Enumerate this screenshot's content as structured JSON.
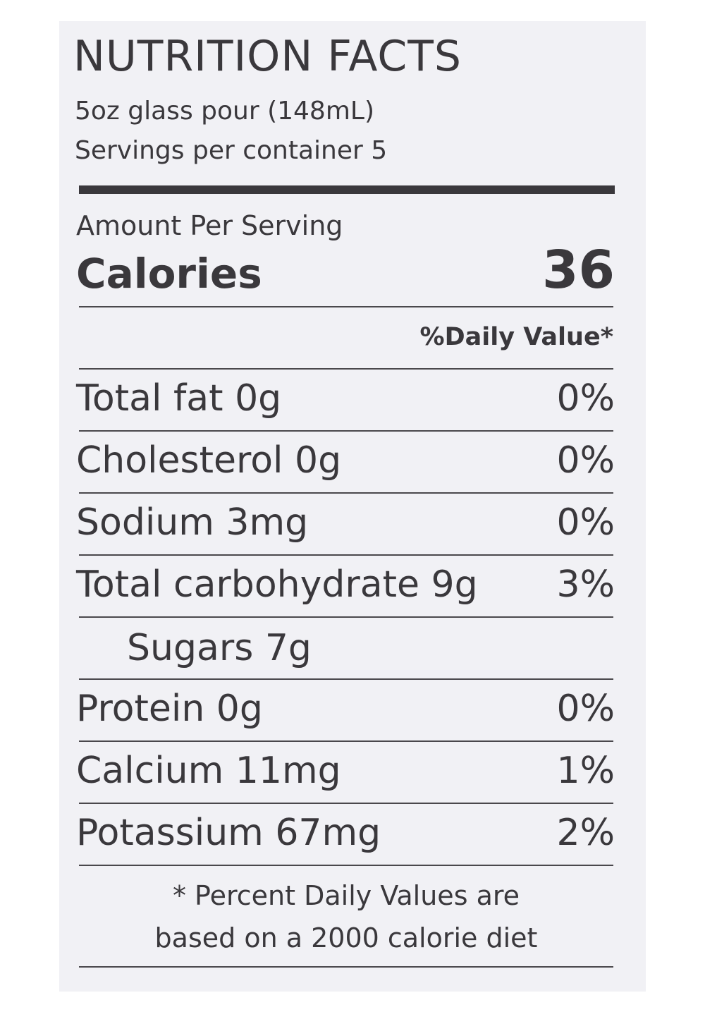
{
  "label": {
    "title": "NUTRITION FACTS",
    "serving_size": "5oz glass pour (148mL)",
    "servings_per_container": "Servings per container 5",
    "amount_per_serving": "Amount Per Serving",
    "calories_label": "Calories",
    "calories_value": "36",
    "daily_value_header": "%Daily Value*",
    "rows": [
      {
        "label": "Total fat 0g",
        "value": "0%"
      },
      {
        "label": "Cholesterol 0g",
        "value": "0%"
      },
      {
        "label": "Sodium 3mg",
        "value": "0%"
      },
      {
        "label": "Total carbohydrate 9g",
        "value": "3%"
      },
      {
        "label": "Sugars 7g",
        "value": ""
      },
      {
        "label": "Protein 0g",
        "value": "0%"
      },
      {
        "label": "Calcium 11mg",
        "value": "1%"
      },
      {
        "label": "Potassium 67mg",
        "value": "2%"
      }
    ],
    "footnote_line1": "* Percent Daily Values are",
    "footnote_line2": "based on a 2000 calorie diet"
  }
}
